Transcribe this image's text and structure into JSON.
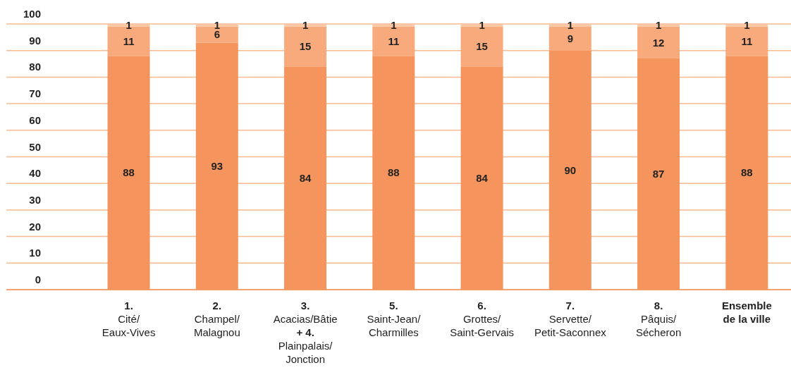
{
  "chart_data": {
    "type": "bar",
    "stacked": true,
    "data_labels": true,
    "grid": "y",
    "legend": false,
    "categories": [
      "1.\nCité/\nEaux-Vives",
      "2.\nChampel/\nMalagnou",
      "3.\nAcacias/Bâtie\n+ 4.\nPlainpalais/\nJonction",
      "5.\nSaint-Jean/\nCharmilles",
      "6.\nGrottes/\nSaint-Gervais",
      "7.\nServette/\nPetit-Saconnex",
      "8.\nPâquis/\nSécheron",
      "Ensemble\nde la ville"
    ],
    "series": [
      {
        "color": "#f5945c",
        "values": [
          88,
          93,
          84,
          88,
          84,
          90,
          87,
          88
        ]
      },
      {
        "color": "#f8aa7c",
        "values": [
          11,
          6,
          15,
          11,
          15,
          9,
          12,
          11
        ]
      },
      {
        "color": "#fbc7a3",
        "values": [
          1,
          1,
          1,
          1,
          1,
          1,
          1,
          1
        ]
      }
    ],
    "ylim": [
      0,
      100
    ],
    "yticks": [
      0,
      10,
      20,
      30,
      40,
      50,
      60,
      70,
      80,
      90,
      100
    ]
  }
}
